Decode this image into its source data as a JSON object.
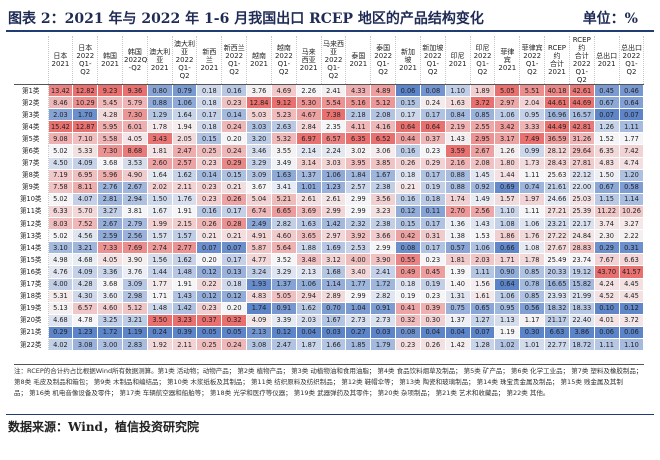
{
  "header": {
    "title": "图表 2：2021 年与 2022 年 1-6 月我国出口 RCEP 地区的产品结构变化",
    "unit": "单位：%"
  },
  "table": {
    "columns": [
      "",
      "日本\n2021",
      "日本\n2022\nQ1-Q2",
      "韩国\n2021",
      "韩国\n2022Q1\n-Q2",
      "澳大利\n亚2021",
      "澳大利\n亚2022\nQ1-Q2",
      "新西\n兰\n2021",
      "新西兰\n2022\nQ1-Q2",
      "越南\n2021",
      "越南\n2022\nQ1-Q2",
      "马来\n西亚\n2021",
      "马来西\n亚2022\nQ1-Q2",
      "泰国\n2021",
      "泰国\n2022\nQ1-Q2",
      "新加\n坡\n2021",
      "新加坡\n2022\nQ1-Q2",
      "印尼\n2021",
      "印尼\n2022\nQ1-Q2",
      "菲律\n宾\n2021",
      "菲律宾\n2022\nQ1-Q2",
      "RCEP约\n合计\n2021",
      "RCEP约\n合计\n2022\nQ1-Q2",
      "总出口\n2021",
      "总出口\n2022\nQ1-Q2"
    ],
    "rows": [
      {
        "label": "第1类",
        "values": [
          "13.42",
          "12.82",
          "9.23",
          "9.36",
          "0.80",
          "0.79",
          "0.18",
          "0.16",
          "3.76",
          "4.69",
          "2.26",
          "2.41",
          "4.33",
          "4.89",
          "0.06",
          "0.08",
          "1.10",
          "1.89",
          "5.05",
          "5.51",
          "40.18",
          "42.61",
          "0.45",
          "0.46"
        ]
      },
      {
        "label": "第2类",
        "values": [
          "8.46",
          "10.29",
          "5.45",
          "5.79",
          "0.88",
          "1.06",
          "0.18",
          "0.23",
          "12.84",
          "9.12",
          "5.30",
          "5.54",
          "5.16",
          "5.12",
          "0.15",
          "0.24",
          "1.63",
          "3.72",
          "2.97",
          "2.04",
          "44.61",
          "44.69",
          "0.67",
          "0.64"
        ]
      },
      {
        "label": "第3类",
        "values": [
          "2.03",
          "1.70",
          "4.28",
          "7.30",
          "1.29",
          "1.64",
          "0.17",
          "0.14",
          "5.03",
          "5.23",
          "4.67",
          "7.38",
          "2.18",
          "2.08",
          "0.17",
          "0.17",
          "0.84",
          "0.85",
          "1.06",
          "0.95",
          "16.96",
          "16.57",
          "0.07",
          "0.07"
        ]
      },
      {
        "label": "第4类",
        "values": [
          "15.42",
          "12.87",
          "5.95",
          "6.01",
          "1.78",
          "1.94",
          "0.18",
          "0.24",
          "3.03",
          "2.63",
          "2.84",
          "2.35",
          "4.11",
          "4.16",
          "0.64",
          "0.64",
          "2.19",
          "2.55",
          "3.42",
          "3.33",
          "44.49",
          "42.81",
          "1.26",
          "1.11"
        ]
      },
      {
        "label": "第5类",
        "values": [
          "9.08",
          "7.10",
          "5.58",
          "4.05",
          "3.43",
          "2.05",
          "0.15",
          "0.20",
          "3.20",
          "5.32",
          "6.97",
          "6.57",
          "6.35",
          "6.52",
          "0.44",
          "0.37",
          "1.43",
          "2.95",
          "3.17",
          "7.49",
          "36.59",
          "31.26",
          "1.52",
          "1.77"
        ]
      },
      {
        "label": "第6类",
        "values": [
          "5.02",
          "5.33",
          "7.30",
          "8.68",
          "1.81",
          "2.47",
          "0.25",
          "0.24",
          "3.46",
          "3.55",
          "2.14",
          "2.24",
          "3.02",
          "3.06",
          "0.16",
          "0.23",
          "3.59",
          "2.67",
          "1.26",
          "0.99",
          "28.12",
          "29.64",
          "6.35",
          "7.42"
        ]
      },
      {
        "label": "第7类",
        "values": [
          "4.50",
          "4.09",
          "3.68",
          "3.53",
          "2.60",
          "2.57",
          "0.23",
          "0.29",
          "3.29",
          "3.49",
          "3.14",
          "3.03",
          "3.95",
          "3.85",
          "0.26",
          "0.29",
          "2.16",
          "2.08",
          "1.80",
          "1.73",
          "28.43",
          "27.81",
          "4.83",
          "4.74"
        ]
      },
      {
        "label": "第8类",
        "values": [
          "7.19",
          "6.95",
          "5.96",
          "4.90",
          "1.64",
          "1.62",
          "0.14",
          "0.15",
          "3.09",
          "1.63",
          "1.37",
          "1.06",
          "1.84",
          "1.67",
          "0.18",
          "0.17",
          "0.88",
          "1.45",
          "1.44",
          "1.11",
          "25.63",
          "22.12",
          "1.50",
          "1.20"
        ]
      },
      {
        "label": "第9类",
        "values": [
          "7.58",
          "8.11",
          "2.76",
          "2.67",
          "2.02",
          "2.11",
          "0.23",
          "0.21",
          "3.67",
          "3.41",
          "1.01",
          "1.23",
          "2.57",
          "2.38",
          "0.21",
          "0.19",
          "0.88",
          "0.92",
          "0.69",
          "0.74",
          "21.61",
          "22.00",
          "0.67",
          "0.58"
        ]
      },
      {
        "label": "第10类",
        "values": [
          "5.02",
          "4.07",
          "2.81",
          "2.94",
          "1.50",
          "1.76",
          "0.23",
          "0.26",
          "5.04",
          "5.21",
          "2.61",
          "2.61",
          "2.99",
          "3.56",
          "0.16",
          "0.18",
          "1.74",
          "1.49",
          "1.57",
          "1.97",
          "24.66",
          "25.03",
          "1.15",
          "1.14"
        ]
      },
      {
        "label": "第11类",
        "values": [
          "6.33",
          "5.70",
          "3.27",
          "3.81",
          "1.67",
          "1.91",
          "0.16",
          "0.17",
          "6.74",
          "6.65",
          "3.69",
          "2.99",
          "2.99",
          "3.23",
          "0.12",
          "0.11",
          "2.70",
          "2.56",
          "1.10",
          "1.11",
          "27.21",
          "25.39",
          "11.22",
          "10.26"
        ]
      },
      {
        "label": "第12类",
        "values": [
          "8.03",
          "7.52",
          "2.67",
          "2.79",
          "1.99",
          "2.15",
          "0.26",
          "0.28",
          "2.49",
          "2.82",
          "1.63",
          "1.42",
          "2.32",
          "2.38",
          "0.15",
          "0.17",
          "1.36",
          "1.43",
          "1.08",
          "1.06",
          "23.21",
          "22.17",
          "3.74",
          "3.27"
        ]
      },
      {
        "label": "第13类",
        "values": [
          "5.02",
          "4.56",
          "2.59",
          "2.56",
          "1.57",
          "1.57",
          "0.21",
          "0.21",
          "4.91",
          "4.60",
          "3.65",
          "2.97",
          "3.92",
          "3.66",
          "0.42",
          "0.31",
          "1.38",
          "1.53",
          "1.86",
          "1.76",
          "27.22",
          "24.84",
          "2.30",
          "2.22"
        ]
      },
      {
        "label": "第14类",
        "values": [
          "3.10",
          "3.21",
          "7.33",
          "7.69",
          "2.74",
          "2.77",
          "0.07",
          "0.07",
          "5.87",
          "5.64",
          "1.88",
          "1.69",
          "2.53",
          "2.99",
          "0.08",
          "0.17",
          "0.57",
          "1.06",
          "0.66",
          "1.08",
          "27.67",
          "28.83",
          "0.29",
          "0.31"
        ]
      },
      {
        "label": "第15类",
        "values": [
          "4.98",
          "4.68",
          "4.05",
          "3.90",
          "1.56",
          "1.62",
          "0.20",
          "0.17",
          "4.77",
          "3.52",
          "3.48",
          "3.12",
          "4.00",
          "3.90",
          "0.55",
          "0.23",
          "1.81",
          "2.03",
          "1.71",
          "1.78",
          "25.49",
          "23.74",
          "7.67",
          "6.63"
        ]
      },
      {
        "label": "第16类",
        "values": [
          "4.76",
          "4.09",
          "3.36",
          "3.76",
          "1.44",
          "1.48",
          "0.12",
          "0.13",
          "3.24",
          "3.29",
          "2.13",
          "1.68",
          "3.40",
          "2.41",
          "0.49",
          "0.45",
          "1.39",
          "1.11",
          "0.90",
          "0.85",
          "20.33",
          "19.12",
          "43.70",
          "41.57"
        ]
      },
      {
        "label": "第17类",
        "values": [
          "4.00",
          "4.28",
          "3.68",
          "3.09",
          "1.77",
          "1.91",
          "0.22",
          "0.18",
          "1.93",
          "1.37",
          "1.06",
          "1.14",
          "1.77",
          "1.72",
          "0.18",
          "0.19",
          "1.40",
          "1.56",
          "0.64",
          "0.78",
          "16.65",
          "15.82",
          "4.24",
          "4.45"
        ]
      },
      {
        "label": "第18类",
        "values": [
          "5.31",
          "4.30",
          "3.60",
          "2.98",
          "1.71",
          "1.43",
          "0.12",
          "0.12",
          "4.83",
          "5.05",
          "2.94",
          "2.89",
          "2.99",
          "2.82",
          "0.19",
          "0.23",
          "1.31",
          "1.61",
          "1.06",
          "0.85",
          "23.93",
          "21.99",
          "4.52",
          "4.45"
        ]
      },
      {
        "label": "第19类",
        "values": [
          "5.13",
          "6.57",
          "4.60",
          "5.12",
          "1.48",
          "1.42",
          "0.23",
          "0.20",
          "1.74",
          "0.91",
          "1.62",
          "0.70",
          "1.04",
          "0.91",
          "0.41",
          "0.39",
          "0.75",
          "0.65",
          "0.95",
          "0.56",
          "18.32",
          "18.33",
          "0.10",
          "0.12"
        ]
      },
      {
        "label": "第20类",
        "values": [
          "4.68",
          "4.78",
          "3.25",
          "3.21",
          "3.50",
          "3.23",
          "0.37",
          "0.32",
          "4.09",
          "3.39",
          "2.03",
          "1.67",
          "2.73",
          "2.73",
          "0.32",
          "0.30",
          "1.37",
          "1.27",
          "1.13",
          "1.17",
          "21.17",
          "22.40",
          "4.01",
          "3.72"
        ]
      },
      {
        "label": "第21类",
        "values": [
          "0.29",
          "1.23",
          "1.72",
          "1.19",
          "0.24",
          "0.39",
          "0.05",
          "0.05",
          "2.13",
          "0.12",
          "0.04",
          "0.03",
          "0.27",
          "0.03",
          "0.08",
          "0.04",
          "0.04",
          "0.07",
          "1.19",
          "0.30",
          "6.63",
          "3.86",
          "0.06",
          "0.06"
        ]
      },
      {
        "label": "第22类",
        "values": [
          "4.02",
          "3.08",
          "3.00",
          "2.83",
          "1.92",
          "2.11",
          "0.25",
          "0.24",
          "3.08",
          "2.47",
          "1.87",
          "1.66",
          "1.85",
          "1.79",
          "0.23",
          "0.26",
          "1.42",
          "1.28",
          "1.02",
          "1.01",
          "22.77",
          "18.72",
          "1.11",
          "1.10"
        ]
      }
    ]
  },
  "notes": [
    "注：RCEP的合计约占比根据Wind所有数据测算。第1类 活动物；动物产品； 第2类 植物产品； 第3类 动植物油和食用油脂； 第4类 食品饮料烟草及制品； 第5类 矿产品； 第6类 化学工业品； 第7类 塑料及橡胶制品；",
    "第8类 毛皮及制品和箱包； 第9类 木制品和编结品； 第10类 木浆纸板及其制品； 第11类 纺织原料及纺织制品； 第12类 鞋帽伞等； 第13类 陶瓷和玻璃制品； 第14类 珠宝贵金属及制品； 第15类 贱金属及其制",
    "品； 第16类 机电音像设备及零件； 第17类 车辆航空器和船舶等； 第18类 光学和医疗等仪器； 第19类 武器弹药及其零件； 第20类 杂项制品； 第21类 艺术和收藏品； 第22类 其他。"
  ],
  "source": "数据来源：Wind，植信投资研究院",
  "colors": {
    "title": "#1f2b55",
    "high": "#e8706f",
    "low": "#5c84c8",
    "mid": "#f5f5f7"
  }
}
